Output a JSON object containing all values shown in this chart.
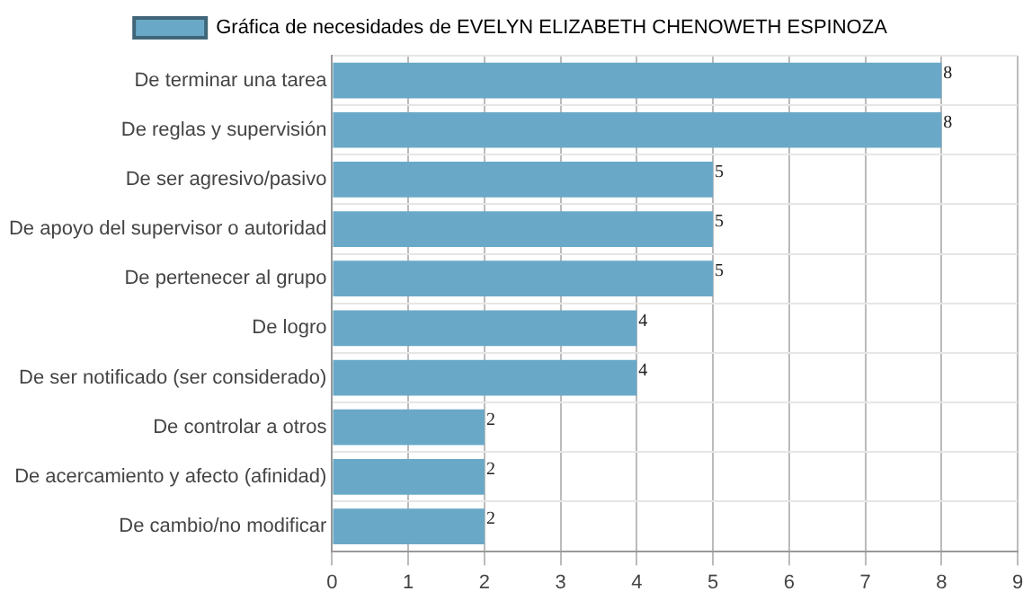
{
  "chart_data": {
    "type": "bar",
    "orientation": "horizontal",
    "categories": [
      "De terminar una tarea",
      "De reglas y supervisión",
      "De ser agresivo/pasivo",
      "De apoyo del supervisor o autoridad",
      "De pertenecer al grupo",
      "De logro",
      "De ser notificado (ser considerado)",
      "De controlar a otros",
      "De acercamiento y afecto (afinidad)",
      "De cambio/no modificar"
    ],
    "series": [
      {
        "name": "Gráfica de necesidades de EVELYN ELIZABETH CHENOWETH ESPINOZA",
        "color": "#6aa8c8",
        "values": [
          8,
          8,
          5,
          5,
          5,
          4,
          4,
          2,
          2,
          2
        ]
      }
    ],
    "xlim": [
      0,
      9
    ],
    "xticks": [
      0,
      1,
      2,
      3,
      4,
      5,
      6,
      7,
      8,
      9
    ],
    "grid": true,
    "legend": "top",
    "data_labels": true
  }
}
